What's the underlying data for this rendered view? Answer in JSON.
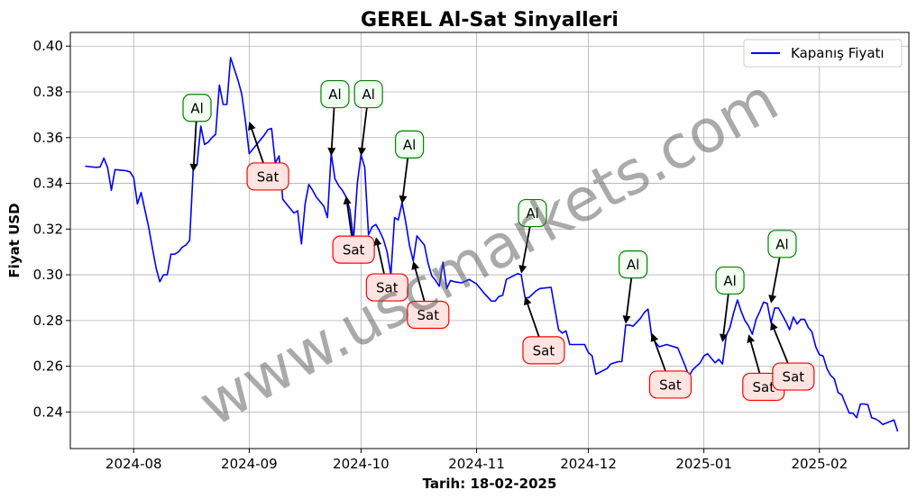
{
  "chart_data": {
    "type": "line",
    "title": "GEREL Al-Sat Sinyalleri",
    "xlabel": "Tarih: 18-02-2025",
    "ylabel": "Fiyat USD",
    "xlim": [
      "2024-07-15",
      "2025-02-25"
    ],
    "ylim": [
      0.224,
      0.406
    ],
    "x_ticks": [
      "2024-08-01",
      "2024-09-01",
      "2024-10-01",
      "2024-11-01",
      "2024-12-01",
      "2025-01-01",
      "2025-02-01"
    ],
    "x_tick_labels": [
      "2024-08",
      "2024-09",
      "2024-10",
      "2024-11",
      "2024-12",
      "2025-01",
      "2025-02"
    ],
    "y_ticks": [
      0.24,
      0.26,
      0.28,
      0.3,
      0.32,
      0.34,
      0.36,
      0.38,
      0.4
    ],
    "y_tick_labels": [
      "0.24",
      "0.26",
      "0.28",
      "0.30",
      "0.32",
      "0.34",
      "0.36",
      "0.38",
      "0.40"
    ],
    "grid": true,
    "legend_position": "top-right",
    "series": [
      {
        "name": "Kapanış Fiyatı",
        "color": "#0000ff",
        "points": [
          [
            "2024-07-19",
            0.3475
          ],
          [
            "2024-07-22",
            0.347
          ],
          [
            "2024-07-23",
            0.3472
          ],
          [
            "2024-07-24",
            0.351
          ],
          [
            "2024-07-25",
            0.347
          ],
          [
            "2024-07-26",
            0.337
          ],
          [
            "2024-07-27",
            0.346
          ],
          [
            "2024-07-30",
            0.3455
          ],
          [
            "2024-07-31",
            0.345
          ],
          [
            "2024-08-01",
            0.3425
          ],
          [
            "2024-08-02",
            0.331
          ],
          [
            "2024-08-03",
            0.336
          ],
          [
            "2024-08-05",
            0.321
          ],
          [
            "2024-08-06",
            0.312
          ],
          [
            "2024-08-07",
            0.303
          ],
          [
            "2024-08-08",
            0.297
          ],
          [
            "2024-08-09",
            0.3
          ],
          [
            "2024-08-10",
            0.3
          ],
          [
            "2024-08-11",
            0.309
          ],
          [
            "2024-08-12",
            0.309
          ],
          [
            "2024-08-13",
            0.31
          ],
          [
            "2024-08-14",
            0.312
          ],
          [
            "2024-08-15",
            0.313
          ],
          [
            "2024-08-16",
            0.315
          ],
          [
            "2024-08-17",
            0.347
          ],
          [
            "2024-08-18",
            0.348
          ],
          [
            "2024-08-19",
            0.365
          ],
          [
            "2024-08-20",
            0.357
          ],
          [
            "2024-08-21",
            0.358
          ],
          [
            "2024-08-22",
            0.36
          ],
          [
            "2024-08-23",
            0.3615
          ],
          [
            "2024-08-24",
            0.383
          ],
          [
            "2024-08-25",
            0.3745
          ],
          [
            "2024-08-26",
            0.3745
          ],
          [
            "2024-08-27",
            0.395
          ],
          [
            "2024-08-28",
            0.39
          ],
          [
            "2024-08-29",
            0.385
          ],
          [
            "2024-08-30",
            0.379
          ],
          [
            "2024-08-31",
            0.367
          ],
          [
            "2024-09-01",
            0.353
          ],
          [
            "2024-09-02",
            0.355
          ],
          [
            "2024-09-03",
            0.357
          ],
          [
            "2024-09-04",
            0.359
          ],
          [
            "2024-09-05",
            0.361
          ],
          [
            "2024-09-06",
            0.3635
          ],
          [
            "2024-09-07",
            0.364
          ],
          [
            "2024-09-08",
            0.349
          ],
          [
            "2024-09-09",
            0.352
          ],
          [
            "2024-09-10",
            0.333
          ],
          [
            "2024-09-11",
            0.331
          ],
          [
            "2024-09-12",
            0.329
          ],
          [
            "2024-09-13",
            0.327
          ],
          [
            "2024-09-14",
            0.328
          ],
          [
            "2024-09-15",
            0.3135
          ],
          [
            "2024-09-16",
            0.331
          ],
          [
            "2024-09-17",
            0.3395
          ],
          [
            "2024-09-18",
            0.337
          ],
          [
            "2024-09-19",
            0.334
          ],
          [
            "2024-09-20",
            0.332
          ],
          [
            "2024-09-21",
            0.33
          ],
          [
            "2024-09-22",
            0.325
          ],
          [
            "2024-09-23",
            0.353
          ],
          [
            "2024-09-24",
            0.342
          ],
          [
            "2024-09-25",
            0.339
          ],
          [
            "2024-09-26",
            0.337
          ],
          [
            "2024-09-27",
            0.334
          ],
          [
            "2024-09-28",
            0.3285
          ],
          [
            "2024-09-29",
            0.3155
          ],
          [
            "2024-09-30",
            0.34
          ],
          [
            "2024-10-01",
            0.3525
          ],
          [
            "2024-10-02",
            0.347
          ],
          [
            "2024-10-03",
            0.3175
          ],
          [
            "2024-10-04",
            0.321
          ],
          [
            "2024-10-05",
            0.322
          ],
          [
            "2024-10-06",
            0.319
          ],
          [
            "2024-10-07",
            0.3155
          ],
          [
            "2024-10-08",
            0.31
          ],
          [
            "2024-10-09",
            0.3
          ],
          [
            "2024-10-10",
            0.325
          ],
          [
            "2024-10-11",
            0.324
          ],
          [
            "2024-10-12",
            0.3315
          ],
          [
            "2024-10-13",
            0.323
          ],
          [
            "2024-10-14",
            0.313
          ],
          [
            "2024-10-15",
            0.306
          ],
          [
            "2024-10-16",
            0.317
          ],
          [
            "2024-10-17",
            0.315
          ],
          [
            "2024-10-18",
            0.313
          ],
          [
            "2024-10-19",
            0.305
          ],
          [
            "2024-10-20",
            0.2995
          ],
          [
            "2024-10-21",
            0.2975
          ],
          [
            "2024-10-22",
            0.295
          ],
          [
            "2024-10-23",
            0.3055
          ],
          [
            "2024-10-24",
            0.294
          ],
          [
            "2024-10-25",
            0.2975
          ],
          [
            "2024-10-26",
            0.297
          ],
          [
            "2024-10-28",
            0.2965
          ],
          [
            "2024-10-30",
            0.298
          ],
          [
            "2024-11-01",
            0.296
          ],
          [
            "2024-11-03",
            0.292
          ],
          [
            "2024-11-05",
            0.2885
          ],
          [
            "2024-11-06",
            0.2885
          ],
          [
            "2024-11-07",
            0.2905
          ],
          [
            "2024-11-08",
            0.291
          ],
          [
            "2024-11-09",
            0.298
          ],
          [
            "2024-11-12",
            0.3005
          ],
          [
            "2024-11-13",
            0.3
          ],
          [
            "2024-11-14",
            0.29
          ],
          [
            "2024-11-15",
            0.29
          ],
          [
            "2024-11-17",
            0.293
          ],
          [
            "2024-11-18",
            0.294
          ],
          [
            "2024-11-21",
            0.2945
          ],
          [
            "2024-11-23",
            0.276
          ],
          [
            "2024-11-24",
            0.2745
          ],
          [
            "2024-11-25",
            0.2755
          ],
          [
            "2024-11-26",
            0.2695
          ],
          [
            "2024-11-28",
            0.2695
          ],
          [
            "2024-11-30",
            0.2695
          ],
          [
            "2024-12-01",
            0.266
          ],
          [
            "2024-12-02",
            0.2645
          ],
          [
            "2024-12-03",
            0.2565
          ],
          [
            "2024-12-06",
            0.259
          ],
          [
            "2024-12-07",
            0.261
          ],
          [
            "2024-12-09",
            0.262
          ],
          [
            "2024-12-10",
            0.262
          ],
          [
            "2024-12-11",
            0.278
          ],
          [
            "2024-12-12",
            0.278
          ],
          [
            "2024-12-13",
            0.2775
          ],
          [
            "2024-12-15",
            0.281
          ],
          [
            "2024-12-16",
            0.2835
          ],
          [
            "2024-12-17",
            0.285
          ],
          [
            "2024-12-18",
            0.273
          ],
          [
            "2024-12-19",
            0.2705
          ],
          [
            "2024-12-20",
            0.2685
          ],
          [
            "2024-12-22",
            0.2695
          ],
          [
            "2024-12-25",
            0.268
          ],
          [
            "2024-12-26",
            0.264
          ],
          [
            "2024-12-27",
            0.26
          ],
          [
            "2024-12-28",
            0.2555
          ],
          [
            "2024-12-29",
            0.2585
          ],
          [
            "2024-12-31",
            0.2615
          ],
          [
            "2025-01-01",
            0.2645
          ],
          [
            "2025-01-02",
            0.2655
          ],
          [
            "2025-01-03",
            0.2635
          ],
          [
            "2025-01-04",
            0.2615
          ],
          [
            "2025-01-05",
            0.263
          ],
          [
            "2025-01-06",
            0.261
          ],
          [
            "2025-01-07",
            0.2735
          ],
          [
            "2025-01-08",
            0.277
          ],
          [
            "2025-01-09",
            0.2835
          ],
          [
            "2025-01-10",
            0.289
          ],
          [
            "2025-01-11",
            0.284
          ],
          [
            "2025-01-12",
            0.28
          ],
          [
            "2025-01-13",
            0.2775
          ],
          [
            "2025-01-14",
            0.274
          ],
          [
            "2025-01-15",
            0.2805
          ],
          [
            "2025-01-16",
            0.284
          ],
          [
            "2025-01-17",
            0.288
          ],
          [
            "2025-01-18",
            0.2875
          ],
          [
            "2025-01-19",
            0.279
          ],
          [
            "2025-01-20",
            0.2855
          ],
          [
            "2025-01-21",
            0.2855
          ],
          [
            "2025-01-22",
            0.2825
          ],
          [
            "2025-01-23",
            0.2795
          ],
          [
            "2025-01-24",
            0.276
          ],
          [
            "2025-01-25",
            0.2815
          ],
          [
            "2025-01-26",
            0.2785
          ],
          [
            "2025-01-27",
            0.2805
          ],
          [
            "2025-01-28",
            0.2805
          ],
          [
            "2025-01-29",
            0.277
          ],
          [
            "2025-01-30",
            0.275
          ],
          [
            "2025-01-31",
            0.2685
          ],
          [
            "2025-02-01",
            0.265
          ],
          [
            "2025-02-02",
            0.2645
          ],
          [
            "2025-02-03",
            0.259
          ],
          [
            "2025-02-04",
            0.256
          ],
          [
            "2025-02-05",
            0.2545
          ],
          [
            "2025-02-06",
            0.2485
          ],
          [
            "2025-02-07",
            0.2475
          ],
          [
            "2025-02-08",
            0.2435
          ],
          [
            "2025-02-09",
            0.2395
          ],
          [
            "2025-02-10",
            0.2395
          ],
          [
            "2025-02-11",
            0.2375
          ],
          [
            "2025-02-12",
            0.2435
          ],
          [
            "2025-02-13",
            0.2435
          ],
          [
            "2025-02-14",
            0.2432
          ],
          [
            "2025-02-15",
            0.2375
          ],
          [
            "2025-02-16",
            0.237
          ],
          [
            "2025-02-17",
            0.236
          ],
          [
            "2025-02-18",
            0.2345
          ],
          [
            "2025-02-21",
            0.2365
          ],
          [
            "2025-02-22",
            0.2315
          ]
        ]
      }
    ],
    "annotations": [
      {
        "text": "Al",
        "type": "buy",
        "point": [
          "2024-08-17",
          0.345
        ],
        "label_at": [
          "2024-08-18",
          0.373
        ]
      },
      {
        "text": "Sat",
        "type": "sell",
        "point": [
          "2024-09-01",
          0.367
        ],
        "label_at": [
          "2024-09-06",
          0.343
        ]
      },
      {
        "text": "Al",
        "type": "buy",
        "point": [
          "2024-09-23",
          0.352
        ],
        "label_at": [
          "2024-09-24",
          0.379
        ]
      },
      {
        "text": "Al",
        "type": "buy",
        "point": [
          "2024-10-01",
          0.352
        ],
        "label_at": [
          "2024-10-03",
          0.379
        ]
      },
      {
        "text": "Sat",
        "type": "sell",
        "point": [
          "2024-09-27",
          0.3345
        ],
        "label_at": [
          "2024-09-29",
          0.311
        ]
      },
      {
        "text": "Sat",
        "type": "sell",
        "point": [
          "2024-10-05",
          0.3165
        ],
        "label_at": [
          "2024-10-08",
          0.2945
        ]
      },
      {
        "text": "Al",
        "type": "buy",
        "point": [
          "2024-10-12",
          0.331
        ],
        "label_at": [
          "2024-10-14",
          0.357
        ]
      },
      {
        "text": "Sat",
        "type": "sell",
        "point": [
          "2024-10-15",
          0.306
        ],
        "label_at": [
          "2024-10-19",
          0.2825
        ]
      },
      {
        "text": "Al",
        "type": "buy",
        "point": [
          "2024-11-13",
          0.3005
        ],
        "label_at": [
          "2024-11-16",
          0.327
        ]
      },
      {
        "text": "Sat",
        "type": "sell",
        "point": [
          "2024-11-14",
          0.2905
        ],
        "label_at": [
          "2024-11-19",
          0.267
        ]
      },
      {
        "text": "Al",
        "type": "buy",
        "point": [
          "2024-12-11",
          0.2785
        ],
        "label_at": [
          "2024-12-13",
          0.3045
        ]
      },
      {
        "text": "Sat",
        "type": "sell",
        "point": [
          "2024-12-18",
          0.2745
        ],
        "label_at": [
          "2024-12-23",
          0.252
        ]
      },
      {
        "text": "Al",
        "type": "buy",
        "point": [
          "2025-01-06",
          0.2705
        ],
        "label_at": [
          "2025-01-08",
          0.2975
        ]
      },
      {
        "text": "Sat",
        "type": "sell",
        "point": [
          "2025-01-13",
          0.274
        ],
        "label_at": [
          "2025-01-17",
          0.251
        ]
      },
      {
        "text": "Al",
        "type": "buy",
        "point": [
          "2025-01-19",
          0.2875
        ],
        "label_at": [
          "2025-01-22",
          0.3135
        ]
      },
      {
        "text": "Sat",
        "type": "sell",
        "point": [
          "2025-01-19",
          0.2795
        ],
        "label_at": [
          "2025-01-25",
          0.2555
        ]
      }
    ],
    "signal_styles": {
      "buy": {
        "edge": "#008000",
        "face": "#f0fff0"
      },
      "sell": {
        "edge": "#ff0000",
        "face": "#ffe4e1"
      }
    },
    "watermark": "www.uscmarkets.com"
  }
}
